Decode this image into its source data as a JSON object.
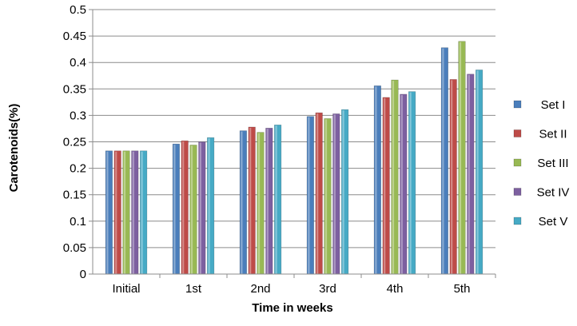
{
  "chart_data": {
    "type": "bar",
    "title": "",
    "xlabel": "Time in weeks",
    "ylabel": "Carotenoids(%)",
    "ylim": [
      0,
      0.5
    ],
    "yticks": [
      "0",
      "0.05",
      "0.1",
      "0.15",
      "0.2",
      "0.25",
      "0.3",
      "0.35",
      "0.4",
      "0.45",
      "0.5"
    ],
    "categories": [
      "Initial",
      "1st",
      "2nd",
      "3rd",
      "4th",
      "5th"
    ],
    "grid": true,
    "legend_position": "right",
    "series": [
      {
        "name": "Set I",
        "color": "#4A7EBB",
        "values": [
          0.233,
          0.246,
          0.271,
          0.298,
          0.356,
          0.428
        ]
      },
      {
        "name": "Set II",
        "color": "#BE4B48",
        "values": [
          0.233,
          0.252,
          0.278,
          0.305,
          0.334,
          0.368
        ]
      },
      {
        "name": "Set III",
        "color": "#98B954",
        "values": [
          0.233,
          0.244,
          0.268,
          0.294,
          0.367,
          0.44
        ]
      },
      {
        "name": "Set IV",
        "color": "#7D60A0",
        "values": [
          0.233,
          0.25,
          0.276,
          0.303,
          0.34,
          0.378
        ]
      },
      {
        "name": "Set V",
        "color": "#46AAC5",
        "values": [
          0.233,
          0.258,
          0.282,
          0.311,
          0.345,
          0.386
        ]
      }
    ]
  }
}
